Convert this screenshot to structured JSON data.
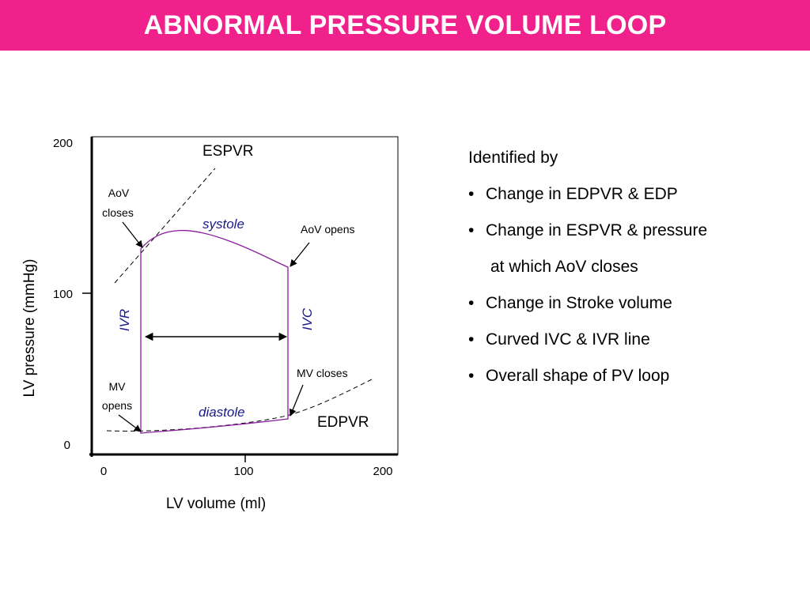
{
  "title": "ABNORMAL PRESSURE VOLUME LOOP",
  "colors": {
    "banner": "#f0218a",
    "loop": "#8a1a9e",
    "label_blue": "#1a1a8a"
  },
  "diagram": {
    "y_ticks": [
      "200",
      "100",
      "0"
    ],
    "x_ticks": [
      "0",
      "100",
      "200"
    ],
    "y_axis_label": "LV pressure (mmHg)",
    "x_axis_label": "LV  volume (ml)",
    "espvr_label": "ESPVR",
    "edpvr_label": "EDPVR",
    "aov_closes_line1": "AoV",
    "aov_closes_line2": "closes",
    "aov_opens": "AoV opens",
    "mv_closes": "MV closes",
    "mv_opens_line1": "MV",
    "mv_opens_line2": "opens",
    "systole": "systole",
    "diastole": "diastole",
    "ivr": "IVR",
    "ivc": "IVC"
  },
  "side_panel": {
    "heading": "Identified by",
    "bullet_char": "•",
    "items": [
      {
        "text": "Change in EDPVR & EDP"
      },
      {
        "text": "Change in ESPVR & pressure",
        "continuation": "at which AoV closes"
      },
      {
        "text": "Change in  Stroke volume"
      },
      {
        "text": "Curved IVC & IVR line"
      },
      {
        "text": "Overall shape of PV loop"
      }
    ]
  }
}
